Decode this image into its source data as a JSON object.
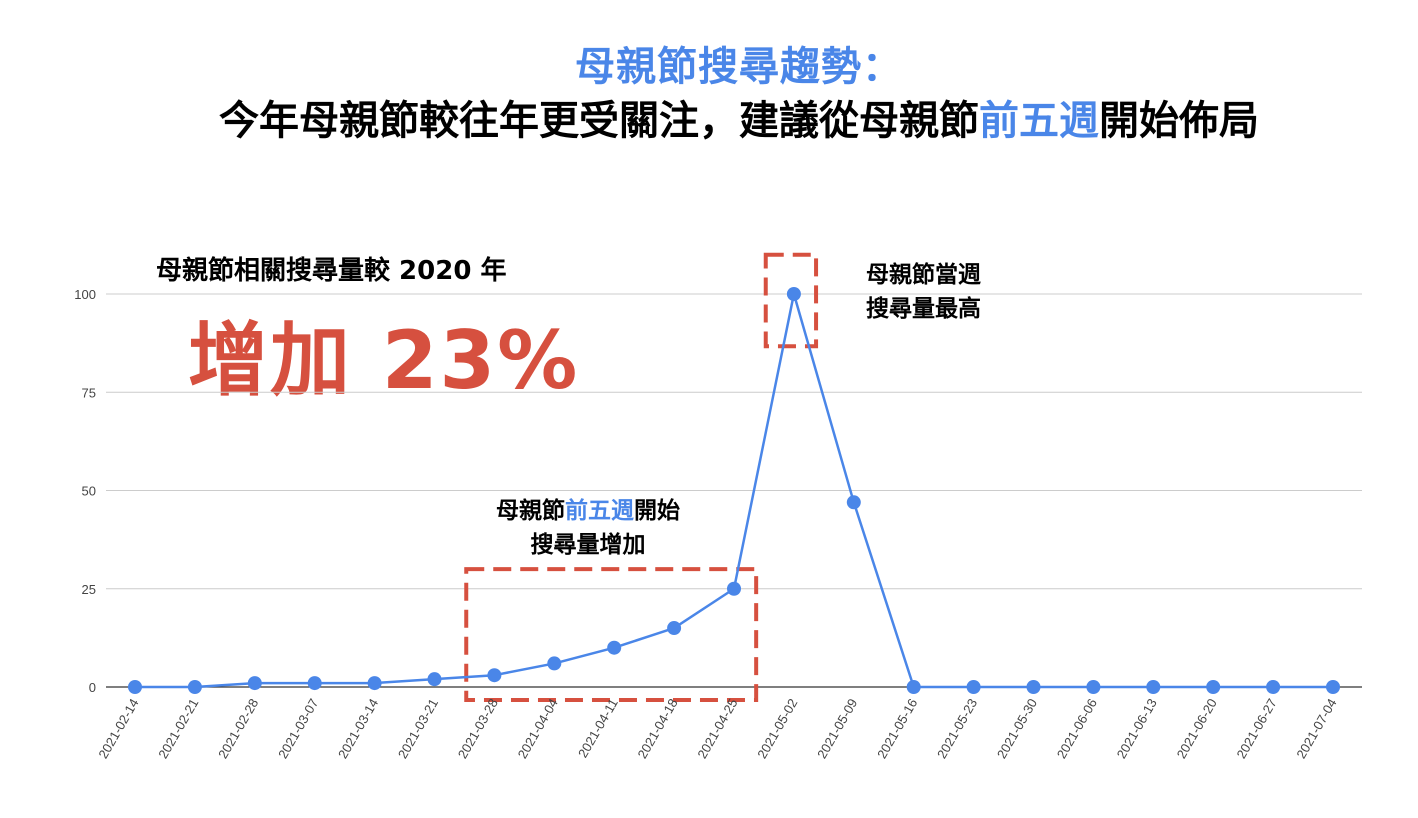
{
  "title": {
    "line1": "母親節搜尋趨勢：",
    "line2_part1": "今年母親節較往年更受關注，建議從母親節",
    "line2_highlight": "前五週",
    "line2_part2": "開始佈局"
  },
  "callout": {
    "subtitle": "母親節相關搜尋量較 2020 年",
    "value": "增加 23%"
  },
  "annotations": {
    "peak_line1": "母親節當週",
    "peak_line2": "搜尋量最高",
    "five_weeks_pre": "母親節",
    "five_weeks_highlight": "前五週",
    "five_weeks_post": "開始",
    "five_weeks_line2": "搜尋量增加"
  },
  "colors": {
    "line": "#4a86e8",
    "highlight": "#4a86e8",
    "callout": "#d6503f",
    "box": "#d6503f",
    "grid": "#cccccc"
  },
  "chart_data": {
    "type": "line",
    "x": [
      "2021-02-14",
      "2021-02-21",
      "2021-02-28",
      "2021-03-07",
      "2021-03-14",
      "2021-03-21",
      "2021-03-28",
      "2021-04-04",
      "2021-04-11",
      "2021-04-18",
      "2021-04-25",
      "2021-05-02",
      "2021-05-09",
      "2021-05-16",
      "2021-05-23",
      "2021-05-30",
      "2021-06-06",
      "2021-06-13",
      "2021-06-20",
      "2021-06-27",
      "2021-07-04"
    ],
    "series": [
      {
        "values": [
          0,
          0,
          1,
          1,
          1,
          2,
          3,
          6,
          10,
          15,
          25,
          100,
          47,
          0,
          0,
          0,
          0,
          0,
          0,
          0,
          0
        ]
      }
    ],
    "ylim": [
      0,
      100
    ],
    "yticks": [
      0,
      25,
      50,
      75,
      100
    ],
    "grid": true,
    "markers": true,
    "highlight_ranges": [
      {
        "from": "2021-03-28",
        "to": "2021-04-25",
        "y_from": 0,
        "y_to": 30
      },
      {
        "from": "2021-05-02",
        "to": "2021-05-02",
        "y_from": 90,
        "y_to": 110
      }
    ]
  }
}
